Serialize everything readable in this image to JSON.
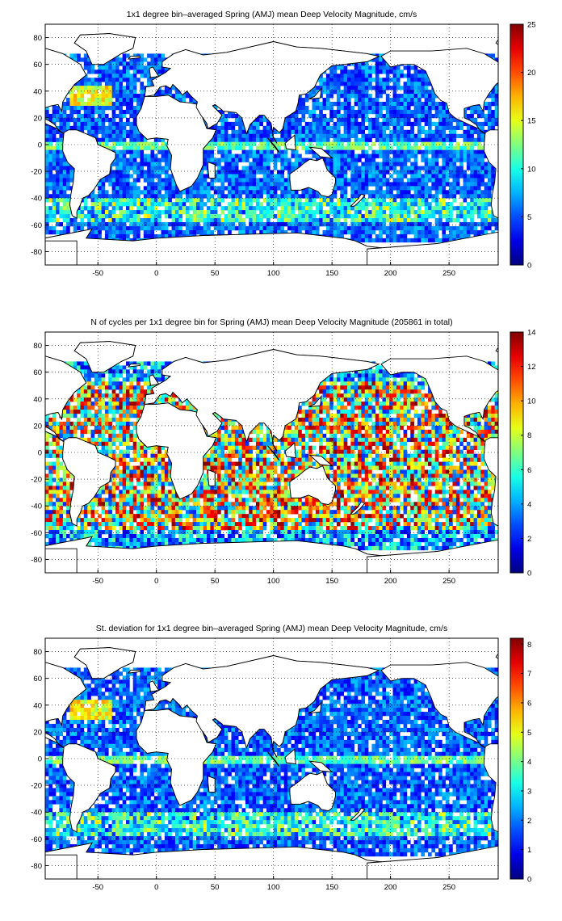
{
  "panels": [
    {
      "id": "mean",
      "title": "1x1 degree bin–averaged Spring (AMJ) mean Deep Velocity Magnitude, cm/s",
      "colorbar": {
        "min": 0,
        "max": 25,
        "ticks": [
          "0",
          "5",
          "10",
          "15",
          "20",
          "25"
        ],
        "tick_values": [
          0,
          5,
          10,
          15,
          20,
          25
        ]
      }
    },
    {
      "id": "count",
      "title": "N of cycles per 1x1 degree bin for Spring (AMJ) mean Deep Velocity Magnitude (205861 in total)",
      "colorbar": {
        "min": 0,
        "max": 14,
        "ticks": [
          "0",
          "2",
          "4",
          "6",
          "8",
          "10",
          "12",
          "14"
        ],
        "tick_values": [
          0,
          2,
          4,
          6,
          8,
          10,
          12,
          14
        ]
      }
    },
    {
      "id": "std",
      "title": "St. deviation for 1x1 degree bin–averaged Spring (AMJ) mean Deep Velocity Magnitude, cm/s",
      "colorbar": {
        "min": 0,
        "max": 8.2,
        "ticks": [
          "0",
          "1",
          "2",
          "3",
          "4",
          "5",
          "6",
          "7",
          "8"
        ],
        "tick_values": [
          0,
          1,
          2,
          3,
          4,
          5,
          6,
          7,
          8
        ]
      }
    }
  ],
  "map_axes": {
    "xlim": [
      -95,
      292
    ],
    "ylim": [
      -90,
      90
    ],
    "x_ticks": [
      "-50",
      "0",
      "50",
      "100",
      "150",
      "200",
      "250"
    ],
    "x_tick_values": [
      -50,
      0,
      50,
      100,
      150,
      200,
      250
    ],
    "y_ticks": [
      "80",
      "60",
      "40",
      "20",
      "0",
      "-20",
      "-40",
      "-60",
      "-80"
    ],
    "y_tick_values": [
      80,
      60,
      40,
      20,
      0,
      -20,
      -40,
      -60,
      -80
    ],
    "grid": "dotted"
  },
  "colormap": "jet"
}
